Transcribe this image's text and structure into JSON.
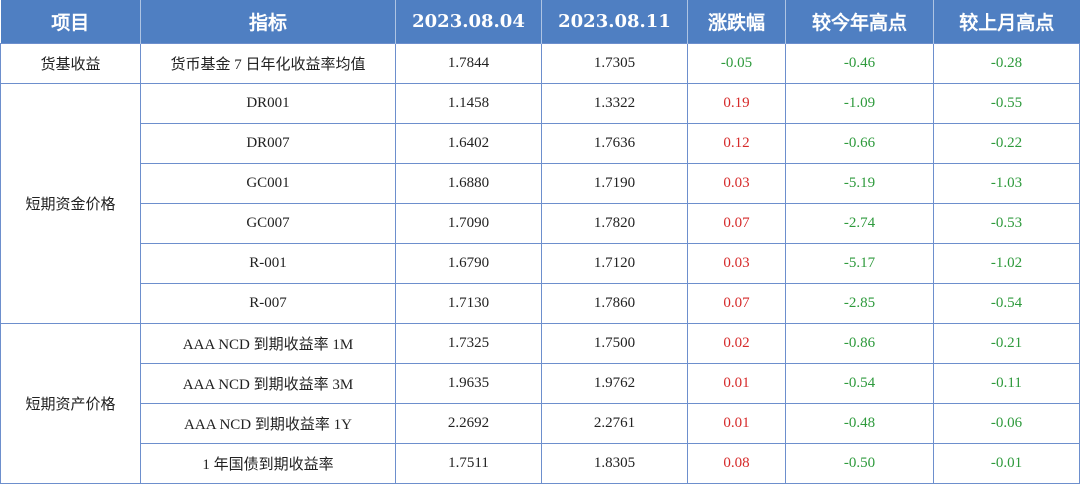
{
  "headers": [
    "项目",
    "指标",
    "2023.08.04",
    "2023.08.11",
    "涨跌幅",
    "较今年高点",
    "较上月高点"
  ],
  "groups": [
    {
      "name": "货基收益",
      "rows": [
        {
          "indicator": "货币基金 7 日年化收益率均值",
          "v1": "1.7844",
          "v2": "1.7305",
          "chg": "-0.05",
          "vs_year_high": "-0.46",
          "vs_month_high": "-0.28"
        }
      ]
    },
    {
      "name": "短期资金价格",
      "rows": [
        {
          "indicator": "DR001",
          "v1": "1.1458",
          "v2": "1.3322",
          "chg": "0.19",
          "vs_year_high": "-1.09",
          "vs_month_high": "-0.55"
        },
        {
          "indicator": "DR007",
          "v1": "1.6402",
          "v2": "1.7636",
          "chg": "0.12",
          "vs_year_high": "-0.66",
          "vs_month_high": "-0.22"
        },
        {
          "indicator": "GC001",
          "v1": "1.6880",
          "v2": "1.7190",
          "chg": "0.03",
          "vs_year_high": "-5.19",
          "vs_month_high": "-1.03"
        },
        {
          "indicator": "GC007",
          "v1": "1.7090",
          "v2": "1.7820",
          "chg": "0.07",
          "vs_year_high": "-2.74",
          "vs_month_high": "-0.53"
        },
        {
          "indicator": "R-001",
          "v1": "1.6790",
          "v2": "1.7120",
          "chg": "0.03",
          "vs_year_high": "-5.17",
          "vs_month_high": "-1.02"
        },
        {
          "indicator": "R-007",
          "v1": "1.7130",
          "v2": "1.7860",
          "chg": "0.07",
          "vs_year_high": "-2.85",
          "vs_month_high": "-0.54"
        }
      ]
    },
    {
      "name": "短期资产价格",
      "rows": [
        {
          "indicator": "AAA NCD 到期收益率 1M",
          "v1": "1.7325",
          "v2": "1.7500",
          "chg": "0.02",
          "vs_year_high": "-0.86",
          "vs_month_high": "-0.21"
        },
        {
          "indicator": "AAA NCD 到期收益率 3M",
          "v1": "1.9635",
          "v2": "1.9762",
          "chg": "0.01",
          "vs_year_high": "-0.54",
          "vs_month_high": "-0.11"
        },
        {
          "indicator": "AAA NCD 到期收益率 1Y",
          "v1": "2.2692",
          "v2": "2.2761",
          "chg": "0.01",
          "vs_year_high": "-0.48",
          "vs_month_high": "-0.06"
        },
        {
          "indicator": "1 年国债到期收益率",
          "v1": "1.7511",
          "v2": "1.8305",
          "chg": "0.08",
          "vs_year_high": "-0.50",
          "vs_month_high": "-0.01"
        }
      ]
    }
  ],
  "colors": {
    "header_bg": "#4f7fc2",
    "positive": "#d62a2a",
    "negative": "#2e9a3c",
    "border": "#6d8fcd"
  }
}
